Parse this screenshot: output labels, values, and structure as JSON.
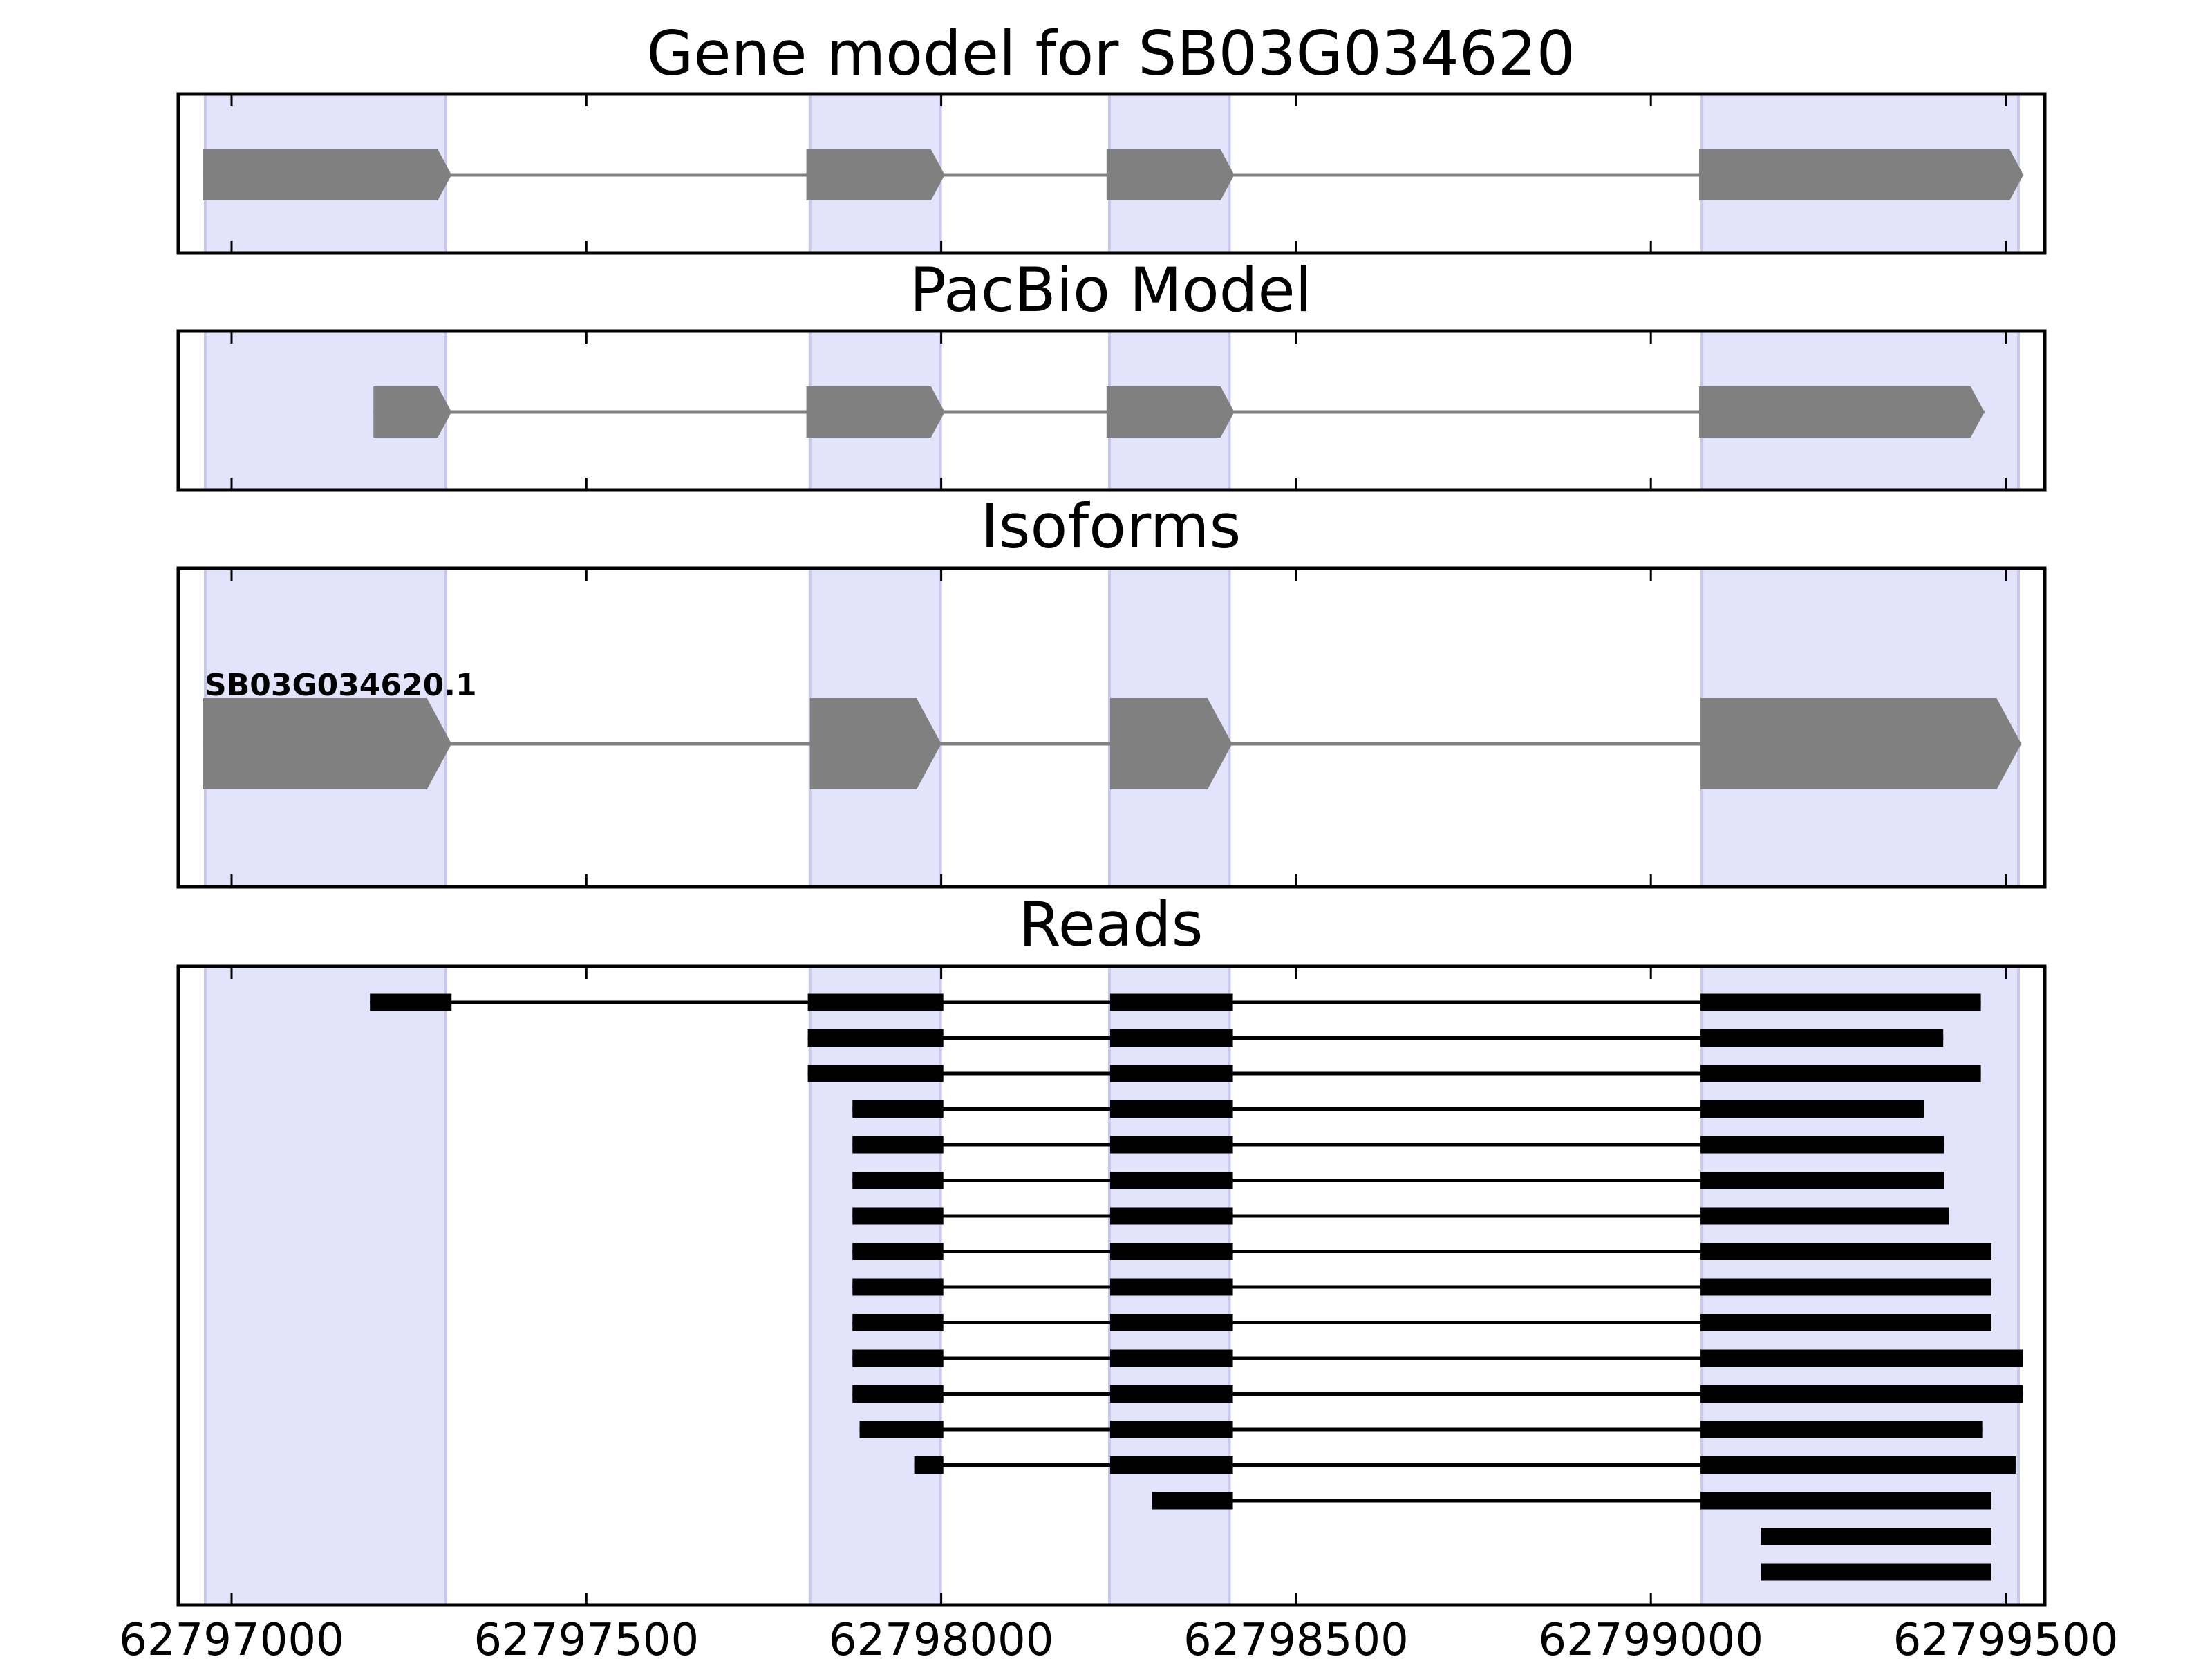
{
  "chart_data": {
    "type": "gene-structure",
    "xlim": [
      62796925,
      62799555
    ],
    "x_ticks": [
      62797000,
      62797500,
      62798000,
      62798500,
      62799000,
      62799500
    ],
    "x_tick_labels": [
      "62797000",
      "62797500",
      "62798000",
      "62798500",
      "62799000",
      "62799500"
    ],
    "colors": {
      "exon_shade": "#e3e3fc",
      "exon_shade_edge": "#c8c8ec",
      "feature": "#808080",
      "read": "#000000",
      "axes": "#000000"
    },
    "shaded_exons": [
      [
        62796963,
        62797302
      ],
      [
        62797815,
        62797999
      ],
      [
        62798237,
        62798406
      ],
      [
        62799072,
        62799518
      ]
    ],
    "panels": [
      {
        "title": "Gene model for SB03G034620",
        "kind": "model",
        "exons": [
          [
            62796960,
            62797310
          ],
          [
            62797810,
            62798005
          ],
          [
            62798233,
            62798413
          ],
          [
            62799068,
            62799525
          ]
        ],
        "intron_span": [
          62796960,
          62799525
        ]
      },
      {
        "title": "PacBio Model",
        "kind": "model",
        "exons": [
          [
            62797200,
            62797310
          ],
          [
            62797810,
            62798005
          ],
          [
            62798233,
            62798413
          ],
          [
            62799068,
            62799470
          ]
        ],
        "intron_span": [
          62797200,
          62799470
        ]
      },
      {
        "title": "Isoforms",
        "kind": "isoforms",
        "isoforms": [
          {
            "name": "SB03G034620.1",
            "exons": [
              [
                62796960,
                62797310
              ],
              [
                62797815,
                62798000
              ],
              [
                62798238,
                62798410
              ],
              [
                62799070,
                62799522
              ]
            ]
          }
        ]
      },
      {
        "title": "Reads",
        "kind": "reads",
        "reads": [
          [
            [
              62797195,
              62797310
            ],
            [
              62797812,
              62798003
            ],
            [
              62798238,
              62798411
            ],
            [
              62799070,
              62799465
            ]
          ],
          [
            [
              62797812,
              62798003
            ],
            [
              62798238,
              62798411
            ],
            [
              62799070,
              62799412
            ]
          ],
          [
            [
              62797812,
              62798003
            ],
            [
              62798238,
              62798411
            ],
            [
              62799070,
              62799465
            ]
          ],
          [
            [
              62797875,
              62798003
            ],
            [
              62798238,
              62798411
            ],
            [
              62799070,
              62799385
            ]
          ],
          [
            [
              62797875,
              62798003
            ],
            [
              62798238,
              62798411
            ],
            [
              62799070,
              62799413
            ]
          ],
          [
            [
              62797875,
              62798003
            ],
            [
              62798238,
              62798411
            ],
            [
              62799070,
              62799413
            ]
          ],
          [
            [
              62797875,
              62798003
            ],
            [
              62798238,
              62798411
            ],
            [
              62799070,
              62799420
            ]
          ],
          [
            [
              62797875,
              62798003
            ],
            [
              62798238,
              62798411
            ],
            [
              62799070,
              62799480
            ]
          ],
          [
            [
              62797875,
              62798003
            ],
            [
              62798238,
              62798411
            ],
            [
              62799070,
              62799480
            ]
          ],
          [
            [
              62797875,
              62798003
            ],
            [
              62798238,
              62798411
            ],
            [
              62799070,
              62799480
            ]
          ],
          [
            [
              62797875,
              62798003
            ],
            [
              62798238,
              62798411
            ],
            [
              62799070,
              62799524
            ]
          ],
          [
            [
              62797875,
              62798003
            ],
            [
              62798238,
              62798411
            ],
            [
              62799070,
              62799524
            ]
          ],
          [
            [
              62797885,
              62798003
            ],
            [
              62798238,
              62798411
            ],
            [
              62799070,
              62799467
            ]
          ],
          [
            [
              62797962,
              62798003
            ],
            [
              62798238,
              62798411
            ],
            [
              62799070,
              62799514
            ]
          ],
          [
            [
              62798297,
              62798411
            ],
            [
              62799070,
              62799480
            ]
          ],
          [
            [
              62799155,
              62799480
            ]
          ],
          [
            [
              62799155,
              62799480
            ]
          ]
        ]
      }
    ]
  }
}
